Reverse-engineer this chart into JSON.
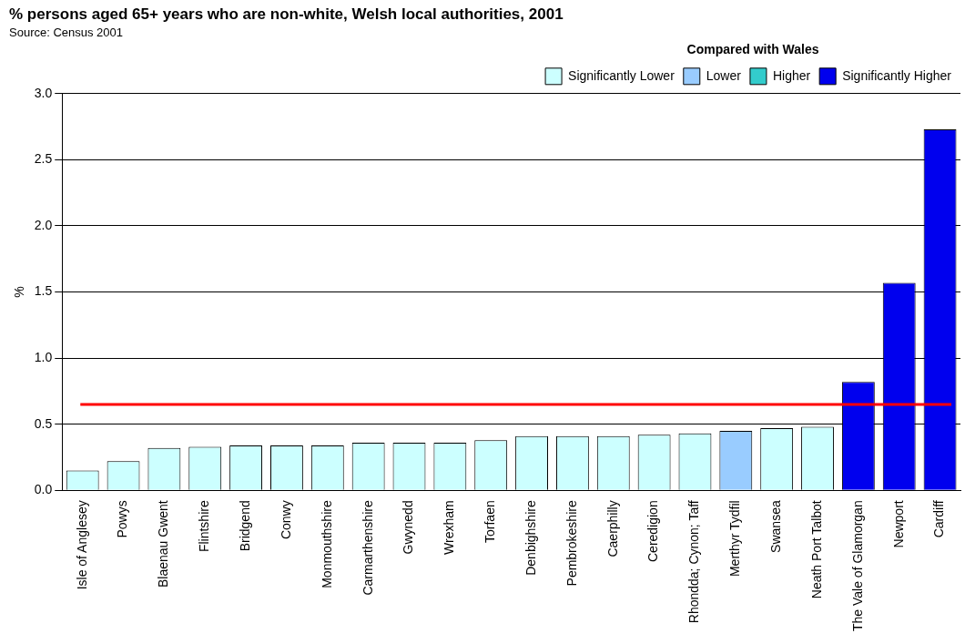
{
  "chart_data": {
    "type": "bar",
    "title": "% persons aged 65+ years who are non-white, Welsh local authorities, 2001",
    "subtitle": "Source: Census 2001",
    "ylabel": "%",
    "legend_title": "Compared with Wales",
    "categories": [
      "Isle of Anglesey",
      "Powys",
      "Blaenau Gwent",
      "Flintshire",
      "Bridgend",
      "Conwy",
      "Monmouthshire",
      "Carmarthenshire",
      "Gwynedd",
      "Wrexham",
      "Torfaen",
      "Denbighshire",
      "Pembrokeshire",
      "Caerphilly",
      "Ceredigion",
      "Rhondda; Cynon; Taff",
      "Merthyr Tydfil",
      "Swansea",
      "Neath Port Talbot",
      "The Vale of Glamorgan",
      "Newport",
      "Cardiff"
    ],
    "series": [
      {
        "name": "Significantly Lower",
        "color": "#ccffff",
        "values": [
          0.15,
          0.22,
          0.32,
          0.33,
          0.34,
          0.34,
          0.34,
          0.36,
          0.36,
          0.36,
          0.38,
          0.41,
          0.41,
          0.41,
          0.42,
          0.43,
          null,
          0.47,
          0.48,
          null,
          null,
          null
        ]
      },
      {
        "name": "Lower",
        "color": "#99ccff",
        "values": [
          null,
          null,
          null,
          null,
          null,
          null,
          null,
          null,
          null,
          null,
          null,
          null,
          null,
          null,
          null,
          null,
          0.45,
          null,
          null,
          null,
          null,
          null
        ]
      },
      {
        "name": "Higher",
        "color": "#33cccc",
        "values": [
          null,
          null,
          null,
          null,
          null,
          null,
          null,
          null,
          null,
          null,
          null,
          null,
          null,
          null,
          null,
          null,
          null,
          null,
          null,
          null,
          null,
          null
        ]
      },
      {
        "name": "Significantly Higher",
        "color": "#0000ee",
        "values": [
          null,
          null,
          null,
          null,
          null,
          null,
          null,
          null,
          null,
          null,
          null,
          null,
          null,
          null,
          null,
          null,
          null,
          null,
          null,
          0.82,
          1.57,
          2.73
        ]
      }
    ],
    "ylim": [
      0,
      3.0
    ],
    "yticks": [
      {
        "value": 0,
        "label": "0.0"
      },
      {
        "value": 0.5,
        "label": "0.5"
      },
      {
        "value": 1,
        "label": "1.0"
      },
      {
        "value": 1.5,
        "label": "1.5"
      },
      {
        "value": 2,
        "label": "2.0"
      },
      {
        "value": 2.5,
        "label": "2.5"
      },
      {
        "value": 3,
        "label": "3.0"
      }
    ],
    "grid": "y",
    "legend": "top right",
    "ref_lines": [
      {
        "axis": "y",
        "value": 0.65,
        "color": "#ff0000"
      }
    ]
  }
}
